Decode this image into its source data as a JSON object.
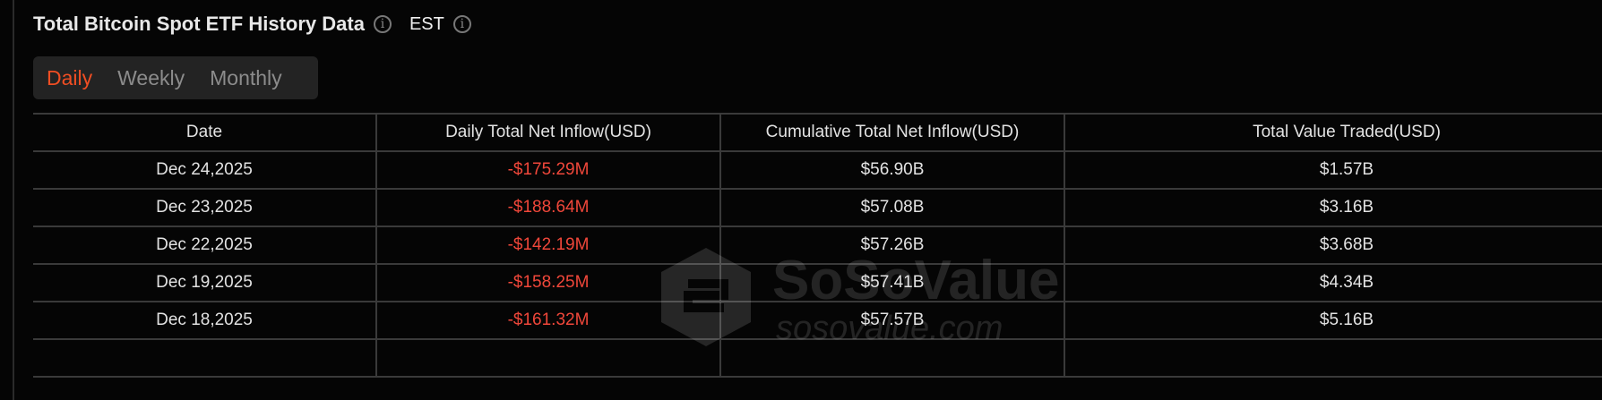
{
  "header": {
    "title": "Total Bitcoin Spot ETF History Data",
    "timezone": "EST",
    "info_icon": "info-circle-icon"
  },
  "tabs": [
    {
      "label": "Daily",
      "active": true
    },
    {
      "label": "Weekly",
      "active": false
    },
    {
      "label": "Monthly",
      "active": false
    }
  ],
  "colors": {
    "accent": "#f04e23",
    "negative": "#f0473a",
    "background": "#050505"
  },
  "table": {
    "columns": [
      "Date",
      "Daily Total Net Inflow(USD)",
      "Cumulative Total Net Inflow(USD)",
      "Total Value Traded(USD)"
    ],
    "rows": [
      [
        "Dec 24,2025",
        "-$175.29M",
        "$56.90B",
        "$1.57B"
      ],
      [
        "Dec 23,2025",
        "-$188.64M",
        "$57.08B",
        "$3.16B"
      ],
      [
        "Dec 22,2025",
        "-$142.19M",
        "$57.26B",
        "$3.68B"
      ],
      [
        "Dec 19,2025",
        "-$158.25M",
        "$57.41B",
        "$4.34B"
      ],
      [
        "Dec 18,2025",
        "-$161.32M",
        "$57.57B",
        "$5.16B"
      ],
      [
        "",
        "",
        "",
        ""
      ]
    ]
  },
  "watermark": {
    "name": "SoSoValue",
    "url": "sosovalue.com"
  }
}
